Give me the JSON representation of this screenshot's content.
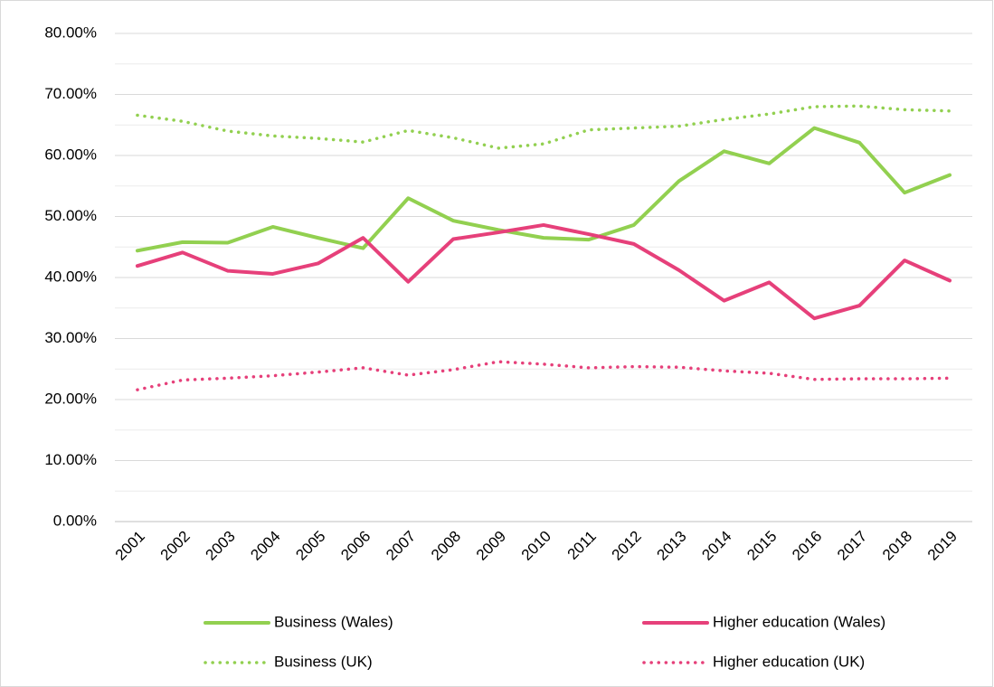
{
  "chart_data": {
    "type": "line",
    "categories": [
      "2001",
      "2002",
      "2003",
      "2004",
      "2005",
      "2006",
      "2007",
      "2008",
      "2009",
      "2010",
      "2011",
      "2012",
      "2013",
      "2014",
      "2015",
      "2016",
      "2017",
      "2018",
      "2019"
    ],
    "series": [
      {
        "name": "Business (Wales)",
        "color": "#92d050",
        "style": "solid",
        "values": [
          44.4,
          45.8,
          45.7,
          48.3,
          46.5,
          44.8,
          53.0,
          49.3,
          47.8,
          46.5,
          46.2,
          48.6,
          55.8,
          60.7,
          58.7,
          64.5,
          62.1,
          53.9,
          56.8
        ]
      },
      {
        "name": "Higher education (Wales)",
        "color": "#e6407a",
        "style": "solid",
        "values": [
          41.9,
          44.1,
          41.1,
          40.6,
          42.3,
          46.5,
          39.3,
          46.3,
          47.4,
          48.6,
          47.1,
          45.5,
          41.2,
          36.2,
          39.2,
          33.3,
          35.4,
          42.8,
          39.5
        ]
      },
      {
        "name": "Business (UK)",
        "color": "#92d050",
        "style": "dotted",
        "values": [
          66.6,
          65.6,
          64.0,
          63.2,
          62.8,
          62.2,
          64.1,
          62.9,
          61.2,
          61.9,
          64.2,
          64.5,
          64.8,
          65.9,
          66.8,
          68.0,
          68.1,
          67.5,
          67.3
        ]
      },
      {
        "name": "Higher education (UK)",
        "color": "#e6407a",
        "style": "dotted",
        "values": [
          21.6,
          23.2,
          23.5,
          23.9,
          24.5,
          25.2,
          24.0,
          24.9,
          26.2,
          25.8,
          25.2,
          25.4,
          25.3,
          24.7,
          24.3,
          23.3,
          23.4,
          23.4,
          23.5
        ]
      }
    ],
    "ylim": [
      0,
      80
    ],
    "yticks": [
      {
        "value": 0,
        "label": "0.00%"
      },
      {
        "value": 10,
        "label": "10.00%"
      },
      {
        "value": 20,
        "label": "20.00%"
      },
      {
        "value": 30,
        "label": "30.00%"
      },
      {
        "value": 40,
        "label": "40.00%"
      },
      {
        "value": 50,
        "label": "50.00%"
      },
      {
        "value": 60,
        "label": "60.00%"
      },
      {
        "value": 70,
        "label": "70.00%"
      },
      {
        "value": 80,
        "label": "80.00%"
      }
    ],
    "grid": true,
    "minor_grid": true,
    "legend": "bottom"
  }
}
